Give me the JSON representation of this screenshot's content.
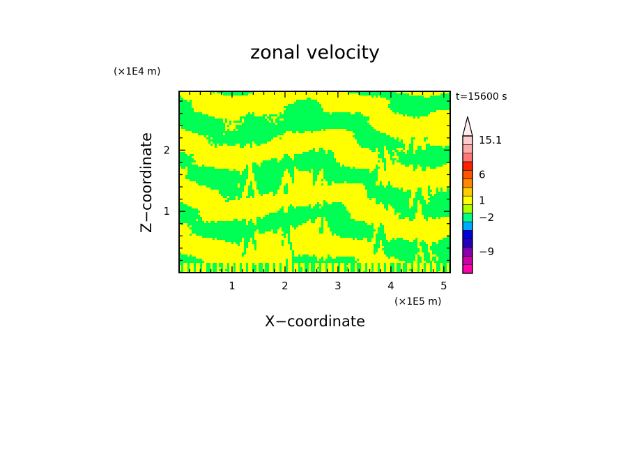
{
  "chart_data": {
    "type": "heatmap",
    "title": "zonal velocity",
    "xlabel": "X−coordinate",
    "ylabel": "Z−coordinate",
    "x_multiplier": "(×1E5 m)",
    "y_multiplier": "(×1E4 m)",
    "annotation": "t=15600 s",
    "xlim": [
      0,
      5.12
    ],
    "ylim": [
      0,
      2.96
    ],
    "x_ticks": [
      {
        "value": 1,
        "label": "1"
      },
      {
        "value": 2,
        "label": "2"
      },
      {
        "value": 3,
        "label": "3"
      },
      {
        "value": 4,
        "label": "4"
      },
      {
        "value": 5,
        "label": "5"
      }
    ],
    "y_ticks": [
      {
        "value": 1,
        "label": "1"
      },
      {
        "value": 2,
        "label": "2"
      }
    ],
    "field_colors": {
      "positive": "#ffff00",
      "negative": "#00ff55"
    },
    "colorbar": {
      "levels": [
        {
          "color": "#ff00aa"
        },
        {
          "color": "#cc00aa"
        },
        {
          "color": "#8800aa"
        },
        {
          "color": "#2200bb"
        },
        {
          "color": "#0000dd"
        },
        {
          "color": "#00aaff"
        },
        {
          "color": "#00ff88"
        },
        {
          "color": "#aaff00"
        },
        {
          "color": "#ffff00"
        },
        {
          "color": "#ffcc00"
        },
        {
          "color": "#ff8800"
        },
        {
          "color": "#ff5500"
        },
        {
          "color": "#ff2200"
        },
        {
          "color": "#ff7777"
        },
        {
          "color": "#ffaaaa"
        },
        {
          "color": "#ffcccc"
        }
      ],
      "tick_labels": [
        {
          "text": "15.1",
          "level_index": 15
        },
        {
          "text": "6",
          "level_index": 11
        },
        {
          "text": "1",
          "level_index": 8
        },
        {
          "text": "−2",
          "level_index": 6
        },
        {
          "text": "−9",
          "level_index": 2
        }
      ]
    }
  }
}
